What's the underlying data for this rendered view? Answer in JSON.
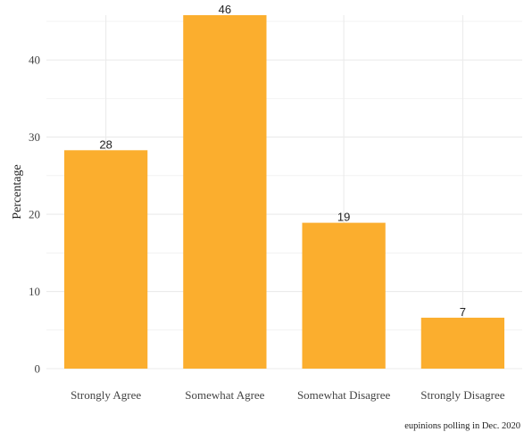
{
  "chart_data": {
    "type": "bar",
    "categories": [
      "Strongly Agree",
      "Somewhat Agree",
      "Somewhat Disagree",
      "Strongly Disagree"
    ],
    "values": [
      28.3,
      45.8,
      18.9,
      6.6
    ],
    "data_labels": [
      "28",
      "46",
      "19",
      "7"
    ],
    "ylabel": "Percentage",
    "xlabel": "",
    "title": "",
    "ylim": [
      0,
      45.8
    ],
    "yticks": [
      0,
      10,
      20,
      30,
      40
    ],
    "ytick_labels": [
      "0",
      "10",
      "20",
      "30",
      "40"
    ],
    "grid": true,
    "legend": "none",
    "bar_color": "#FBAE2E",
    "grid_color": "#EBEBEB",
    "caption": "eupinions polling in Dec. 2020"
  }
}
